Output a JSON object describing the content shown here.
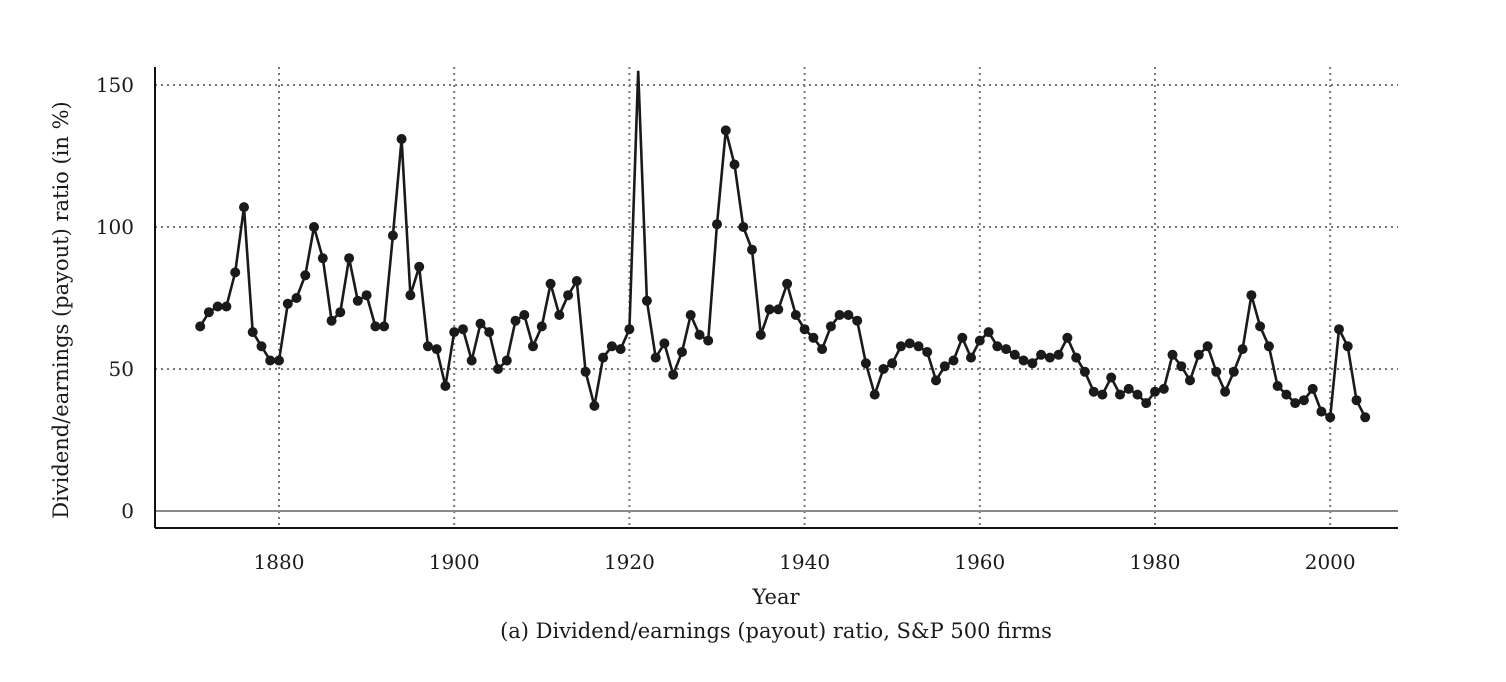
{
  "chart_data": {
    "type": "line",
    "title": "",
    "caption": "(a) Dividend/earnings (payout) ratio, S&P 500 firms",
    "xlabel": "Year",
    "ylabel": "Dividend/earnings (payout) ratio (in %)",
    "xlim": [
      1865,
      2007
    ],
    "ylim": [
      -5,
      157
    ],
    "x_ticks": [
      1880,
      1900,
      1920,
      1940,
      1960,
      1980,
      2000
    ],
    "y_ticks": [
      0,
      50,
      100,
      150
    ],
    "grid": true,
    "legend": "none",
    "series": [
      {
        "x": [
          1871,
          1872,
          1873,
          1874,
          1875,
          1876,
          1877,
          1878,
          1879,
          1880,
          1881,
          1882,
          1883,
          1884,
          1885,
          1886,
          1887,
          1888,
          1889,
          1890,
          1891,
          1892,
          1893,
          1894,
          1895,
          1896,
          1897,
          1898,
          1899,
          1900,
          1901,
          1902,
          1903,
          1904,
          1905,
          1906,
          1907,
          1908,
          1909,
          1910,
          1911,
          1912,
          1913,
          1914,
          1915,
          1916,
          1917,
          1918,
          1919,
          1920,
          1921,
          1922,
          1923,
          1924,
          1925,
          1926,
          1927,
          1928,
          1929,
          1930,
          1931,
          1932,
          1933,
          1934,
          1935,
          1936,
          1937,
          1938,
          1939,
          1940,
          1941,
          1942,
          1943,
          1944,
          1945,
          1946,
          1947,
          1948,
          1949,
          1950,
          1951,
          1952,
          1953,
          1954,
          1955,
          1956,
          1957,
          1958,
          1959,
          1960,
          1961,
          1962,
          1963,
          1964,
          1965,
          1966,
          1967,
          1968,
          1969,
          1970,
          1971,
          1972,
          1973,
          1974,
          1975,
          1976,
          1977,
          1978,
          1979,
          1980,
          1981,
          1982,
          1983,
          1984,
          1985,
          1986,
          1987,
          1988,
          1989,
          1990,
          1991,
          1992,
          1993,
          1994,
          1995,
          1996,
          1997,
          1998,
          1999,
          2000,
          2001,
          2002,
          2003,
          2004
        ],
        "values": [
          65,
          70,
          72,
          72,
          84,
          107,
          63,
          58,
          53,
          53,
          73,
          75,
          83,
          100,
          89,
          67,
          70,
          89,
          74,
          76,
          65,
          65,
          97,
          131,
          76,
          86,
          58,
          57,
          44,
          63,
          64,
          53,
          66,
          63,
          50,
          53,
          67,
          69,
          58,
          65,
          80,
          69,
          76,
          81,
          49,
          37,
          54,
          58,
          57,
          64,
          155,
          74,
          54,
          59,
          48,
          56,
          69,
          62,
          60,
          101,
          134,
          122,
          100,
          92,
          62,
          71,
          71,
          80,
          69,
          64,
          61,
          57,
          65,
          69,
          69,
          67,
          52,
          41,
          50,
          52,
          58,
          59,
          58,
          56,
          46,
          51,
          53,
          61,
          54,
          60,
          63,
          58,
          57,
          55,
          53,
          52,
          55,
          54,
          55,
          61,
          54,
          49,
          42,
          41,
          47,
          41,
          43,
          41,
          38,
          42,
          43,
          55,
          51,
          46,
          55,
          58,
          49,
          42,
          49,
          57,
          76,
          65,
          58,
          44,
          41,
          38,
          39,
          43,
          35,
          33,
          64,
          58,
          39,
          33
        ]
      }
    ]
  }
}
